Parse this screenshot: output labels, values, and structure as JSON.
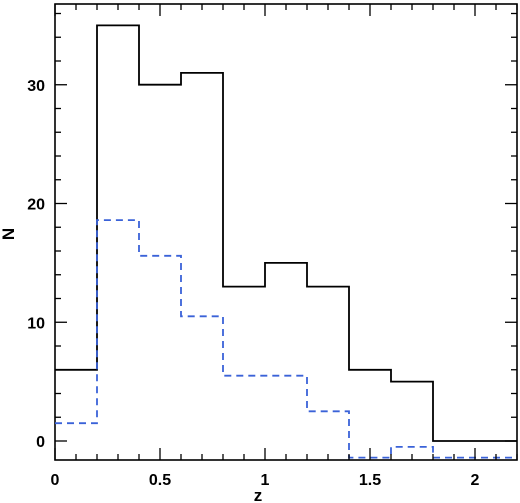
{
  "chart_data": {
    "type": "histogram",
    "title": "",
    "xlabel": "z",
    "ylabel": "N",
    "xlim": [
      0,
      2.2
    ],
    "ylim": [
      -1.6,
      36.8
    ],
    "x_ticks": [
      0,
      0.5,
      1,
      1.5,
      2
    ],
    "x_tick_labels": [
      "0",
      "0.5",
      "1",
      "1.5",
      "2"
    ],
    "y_ticks": [
      0,
      10,
      20,
      30
    ],
    "y_tick_labels": [
      "0",
      "10",
      "20",
      "30"
    ],
    "bin_edges": [
      0,
      0.2,
      0.4,
      0.6,
      0.8,
      1.0,
      1.2,
      1.4,
      1.6,
      1.8,
      2.0,
      2.2
    ],
    "grid": false,
    "legend": "none",
    "series": [
      {
        "style": "solid",
        "color": "#000000",
        "values": [
          6,
          35,
          30,
          31,
          13,
          15,
          13,
          6,
          5,
          0,
          0
        ]
      },
      {
        "style": "dashed",
        "color": "#3a62d8",
        "values": [
          1.5,
          18.6,
          15.6,
          10.5,
          5.5,
          5.5,
          2.5,
          -1.4,
          -0.5,
          -1.4,
          -1.4
        ]
      }
    ]
  }
}
